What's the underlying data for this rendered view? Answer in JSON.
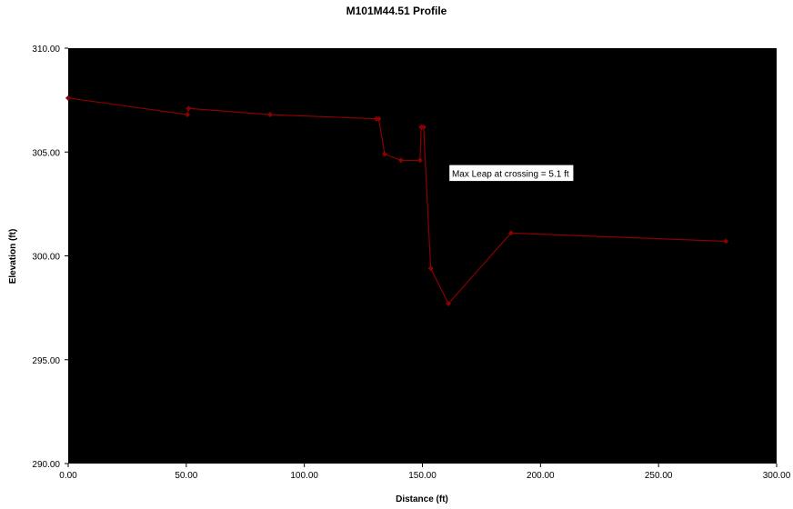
{
  "chart_data": {
    "type": "line",
    "title": "M101M44.51 Profile",
    "xlabel": "Distance (ft)",
    "ylabel": "Elevation (ft)",
    "xlim": [
      0,
      300
    ],
    "ylim": [
      290,
      310
    ],
    "xticks": [
      "0.00",
      "50.00",
      "100.00",
      "150.00",
      "200.00",
      "250.00",
      "300.00"
    ],
    "yticks": [
      "290.00",
      "295.00",
      "300.00",
      "305.00",
      "310.00"
    ],
    "grid": false,
    "legend": "none",
    "plot_background": "#000000",
    "series": [
      {
        "color": "#8b0000",
        "points": [
          [
            0.0,
            307.6
          ],
          [
            50.5,
            306.8
          ],
          [
            51.0,
            307.1
          ],
          [
            85.5,
            306.8
          ],
          [
            130.5,
            306.6
          ],
          [
            131.5,
            306.6
          ],
          [
            134.0,
            304.9
          ],
          [
            141.0,
            304.6
          ],
          [
            149.0,
            304.6
          ],
          [
            149.5,
            306.2
          ],
          [
            150.5,
            306.2
          ],
          [
            153.5,
            299.4
          ],
          [
            161.0,
            297.7
          ],
          [
            187.5,
            301.1
          ],
          [
            278.5,
            300.7
          ]
        ]
      }
    ],
    "annotations": [
      {
        "text": "Max Leap at crossing = 5.1 ft",
        "x": 162.5,
        "y": 303.9
      }
    ]
  }
}
